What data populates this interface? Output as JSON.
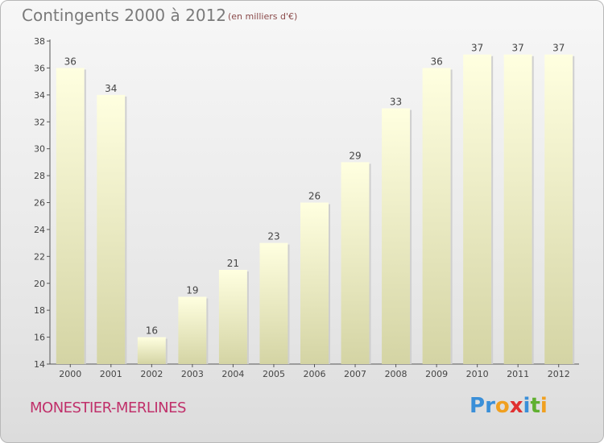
{
  "header": {
    "title": "Contingents 2000 à 2012",
    "subtitle": "(en milliers d'€)"
  },
  "footer": {
    "commune": "MONESTIER-MERLINES",
    "logo_letters": [
      "P",
      "r",
      "o",
      "x",
      "i",
      "t",
      "i"
    ]
  },
  "colors": {
    "bar_top": "#ffffe0",
    "bar_bottom": "#d4d4a4",
    "commune": "#c0306a",
    "logo": [
      "#3a8fd8",
      "#3a8fd8",
      "#f0a020",
      "#e03030",
      "#3a8fd8",
      "#60b030",
      "#f0a020"
    ]
  },
  "chart_data": {
    "type": "bar",
    "title": "Contingents 2000 à 2012",
    "subtitle": "(en milliers d'€)",
    "categories": [
      "2000",
      "2001",
      "2002",
      "2003",
      "2004",
      "2005",
      "2006",
      "2007",
      "2008",
      "2009",
      "2010",
      "2011",
      "2012"
    ],
    "values": [
      36,
      34,
      16,
      19,
      21,
      23,
      26,
      29,
      33,
      36,
      37,
      37,
      37
    ],
    "ylim": [
      14,
      38
    ],
    "yticks": [
      14,
      16,
      18,
      20,
      22,
      24,
      26,
      28,
      30,
      32,
      34,
      36,
      38
    ],
    "grid": false,
    "data_labels": true
  }
}
